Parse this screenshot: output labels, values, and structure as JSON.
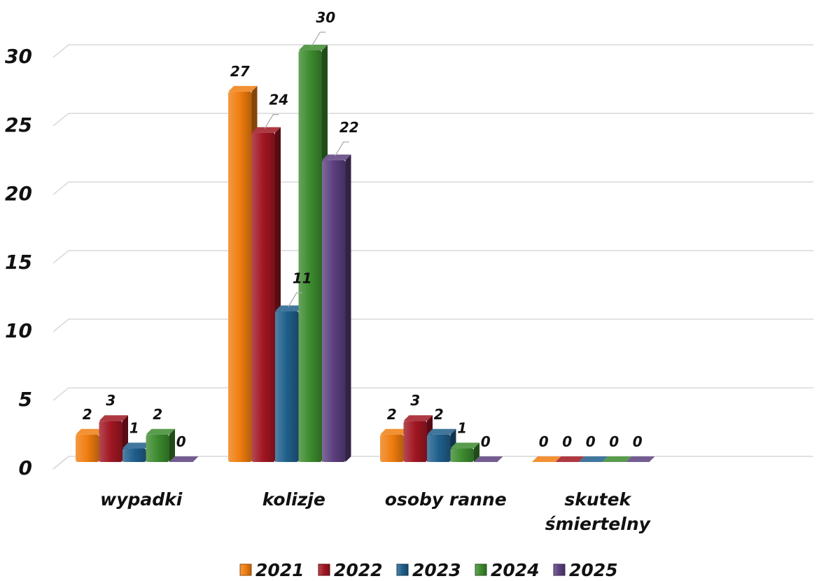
{
  "chart_data": {
    "type": "bar",
    "title": "",
    "xlabel": "",
    "ylabel": "",
    "categories": [
      [
        "wypadki"
      ],
      [
        "kolizje"
      ],
      [
        "osoby ranne"
      ],
      [
        "skutek",
        "śmiertelny"
      ]
    ],
    "series": [
      {
        "name": "2021",
        "color": "#f07d0f",
        "values": [
          2,
          27,
          2,
          0
        ]
      },
      {
        "name": "2022",
        "color": "#a01622",
        "values": [
          3,
          24,
          3,
          0
        ]
      },
      {
        "name": "2023",
        "color": "#1f5f8b",
        "values": [
          1,
          11,
          2,
          0
        ]
      },
      {
        "name": "2024",
        "color": "#3c8a2e",
        "values": [
          2,
          30,
          1,
          0
        ]
      },
      {
        "name": "2025",
        "color": "#5b3f7e",
        "values": [
          0,
          22,
          0,
          0
        ]
      }
    ],
    "ylim": [
      0,
      30
    ],
    "yticks": [
      0,
      5,
      10,
      15,
      20,
      25,
      30
    ],
    "grid": true,
    "legend_position": "bottom"
  }
}
